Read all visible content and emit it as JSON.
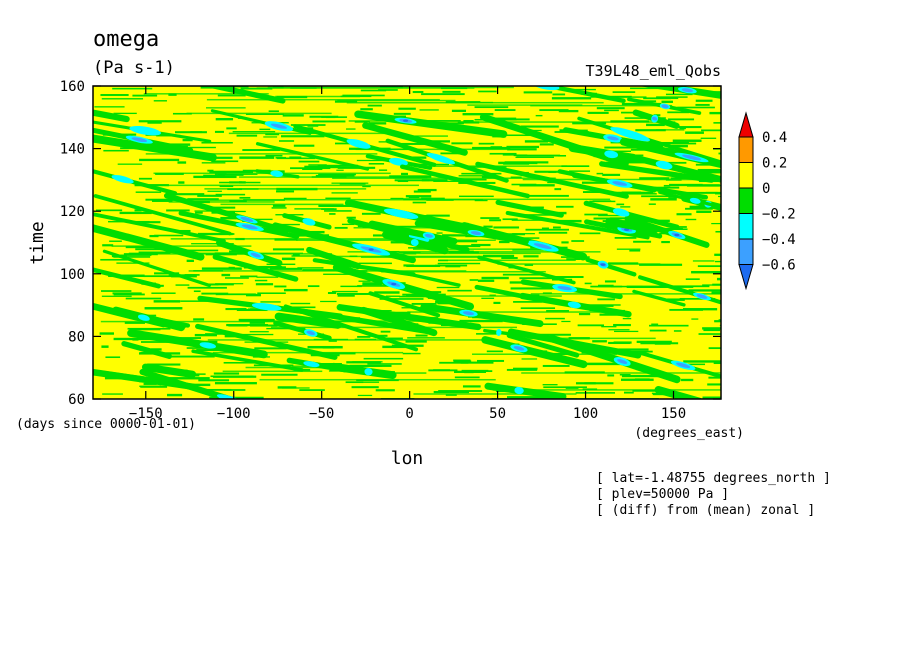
{
  "chart_data": {
    "type": "heatmap",
    "title": "omega",
    "units": "(Pa s-1)",
    "run_name": "T39L48_eml_Qobs",
    "xlabel": "lon",
    "ylabel": "time",
    "x_units": "(degrees_east)",
    "y_units": "(days since 0000-01-01)",
    "xlim": [
      -180,
      177
    ],
    "ylim": [
      60,
      160
    ],
    "x_ticks": [
      -150,
      -100,
      -50,
      0,
      50,
      100,
      150
    ],
    "x_tick_labels": [
      "−150",
      "−100",
      "−50",
      "0",
      "50",
      "100",
      "150"
    ],
    "y_ticks": [
      60,
      80,
      100,
      120,
      140,
      160
    ],
    "y_tick_labels": [
      "60",
      "80",
      "100",
      "120",
      "140",
      "160"
    ],
    "colorbar": {
      "levels": [
        -0.6,
        -0.4,
        -0.2,
        0,
        0.2,
        0.4
      ],
      "labels": [
        "−0.6",
        "−0.4",
        "−0.2",
        "0",
        "0.2",
        "0.4"
      ],
      "colors": [
        "#1e6cf0",
        "#3ca0ff",
        "#00ffff",
        "#00dd00",
        "#ffff00",
        "#ff9900",
        "#ee0000"
      ],
      "extend": "both"
    },
    "background_level": "0 to 0.2",
    "pattern": "diagonal eastward-propagating negative (ascent) streaks, shifting to later times toward the east",
    "notes": [
      "[ lat=-1.48755 degrees_north ]",
      "[ plev=50000 Pa ]",
      "[ (diff) from (mean) zonal ]"
    ]
  }
}
